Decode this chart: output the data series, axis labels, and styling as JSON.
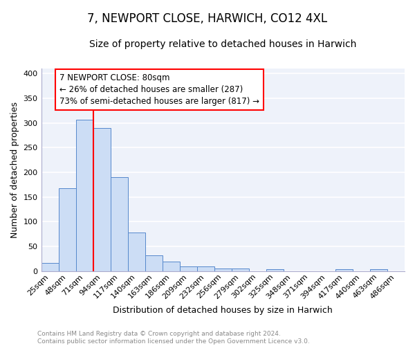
{
  "title": "7, NEWPORT CLOSE, HARWICH, CO12 4XL",
  "subtitle": "Size of property relative to detached houses in Harwich",
  "xlabel": "Distribution of detached houses by size in Harwich",
  "ylabel": "Number of detached properties",
  "categories": [
    "25sqm",
    "48sqm",
    "71sqm",
    "94sqm",
    "117sqm",
    "140sqm",
    "163sqm",
    "186sqm",
    "209sqm",
    "232sqm",
    "256sqm",
    "279sqm",
    "302sqm",
    "325sqm",
    "348sqm",
    "371sqm",
    "394sqm",
    "417sqm",
    "440sqm",
    "463sqm",
    "486sqm"
  ],
  "values": [
    16,
    168,
    306,
    289,
    190,
    78,
    32,
    19,
    10,
    9,
    6,
    5,
    0,
    4,
    0,
    0,
    0,
    4,
    0,
    4,
    0
  ],
  "bar_color": "#ccddf5",
  "bar_edge_color": "#5588cc",
  "red_line_x": 2.5,
  "annotation_line1": "7 NEWPORT CLOSE: 80sqm",
  "annotation_line2": "← 26% of detached houses are smaller (287)",
  "annotation_line3": "73% of semi-detached houses are larger (817) →",
  "annotation_box_color": "white",
  "annotation_box_edge": "red",
  "footer_text": "Contains HM Land Registry data © Crown copyright and database right 2024.\nContains public sector information licensed under the Open Government Licence v3.0.",
  "ylim": [
    0,
    410
  ],
  "yticks": [
    0,
    50,
    100,
    150,
    200,
    250,
    300,
    350,
    400
  ],
  "background_color": "#eef2fa",
  "grid_color": "#ffffff",
  "title_fontsize": 12,
  "subtitle_fontsize": 10,
  "ylabel_fontsize": 9,
  "xlabel_fontsize": 9,
  "tick_fontsize": 8,
  "footer_fontsize": 6.5,
  "annotation_fontsize": 8.5
}
